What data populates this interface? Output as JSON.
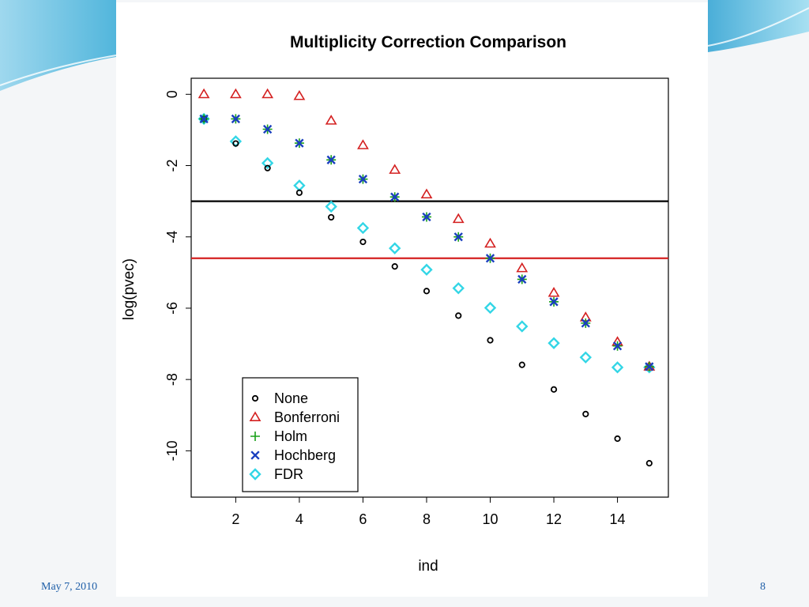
{
  "slide": {
    "footer_date": "May 7, 2010",
    "page_number": "8"
  },
  "colors": {
    "none": "#000000",
    "bonferroni": "#d42020",
    "holm": "#18a018",
    "hochberg": "#1a3fbf",
    "fdr": "#33d6e6",
    "hline_black": "#000000",
    "hline_red": "#d42020"
  },
  "chart_data": {
    "type": "scatter",
    "title": "Multiplicity Correction Comparison",
    "xlabel": "ind",
    "ylabel": "log(pvec)",
    "xlim": [
      0.6,
      15.6
    ],
    "ylim": [
      -11.3,
      0.45
    ],
    "xticks": [
      2,
      4,
      6,
      8,
      10,
      12,
      14
    ],
    "yticks": [
      0,
      -2,
      -4,
      -6,
      -8,
      -10
    ],
    "x": [
      1,
      2,
      3,
      4,
      5,
      6,
      7,
      8,
      9,
      10,
      11,
      12,
      13,
      14,
      15
    ],
    "series": [
      {
        "name": "None",
        "marker": "circle",
        "color_key": "none",
        "values": [
          -0.69,
          -1.38,
          -2.07,
          -2.76,
          -3.45,
          -4.14,
          -4.83,
          -5.52,
          -6.21,
          -6.9,
          -7.59,
          -8.28,
          -8.97,
          -9.66,
          -10.35
        ]
      },
      {
        "name": "Bonferroni",
        "marker": "triangle",
        "color_key": "bonferroni",
        "values": [
          0,
          0,
          0,
          -0.05,
          -0.74,
          -1.43,
          -2.12,
          -2.81,
          -3.5,
          -4.19,
          -4.88,
          -5.57,
          -6.26,
          -6.95,
          -7.64
        ]
      },
      {
        "name": "Holm",
        "marker": "plus",
        "color_key": "holm",
        "values": [
          -0.69,
          -0.69,
          -0.98,
          -1.37,
          -1.84,
          -2.38,
          -2.88,
          -3.44,
          -4.0,
          -4.6,
          -5.19,
          -5.82,
          -6.42,
          -7.06,
          -7.64
        ]
      },
      {
        "name": "Hochberg",
        "marker": "x",
        "color_key": "hochberg",
        "values": [
          -0.69,
          -0.69,
          -0.98,
          -1.37,
          -1.84,
          -2.38,
          -2.88,
          -3.44,
          -4.0,
          -4.6,
          -5.19,
          -5.82,
          -6.42,
          -7.06,
          -7.64
        ]
      },
      {
        "name": "FDR",
        "marker": "diamond",
        "color_key": "fdr",
        "values": [
          -0.69,
          -1.32,
          -1.93,
          -2.56,
          -3.15,
          -3.75,
          -4.32,
          -4.92,
          -5.44,
          -5.99,
          -6.51,
          -6.98,
          -7.38,
          -7.66,
          -7.66
        ]
      }
    ],
    "hlines": [
      {
        "y": -3.0,
        "color_key": "hline_black"
      },
      {
        "y": -4.6,
        "color_key": "hline_red"
      }
    ],
    "legend": {
      "position": "bottom-left",
      "entries": [
        "None",
        "Bonferroni",
        "Holm",
        "Hochberg",
        "FDR"
      ]
    },
    "grid": false
  }
}
